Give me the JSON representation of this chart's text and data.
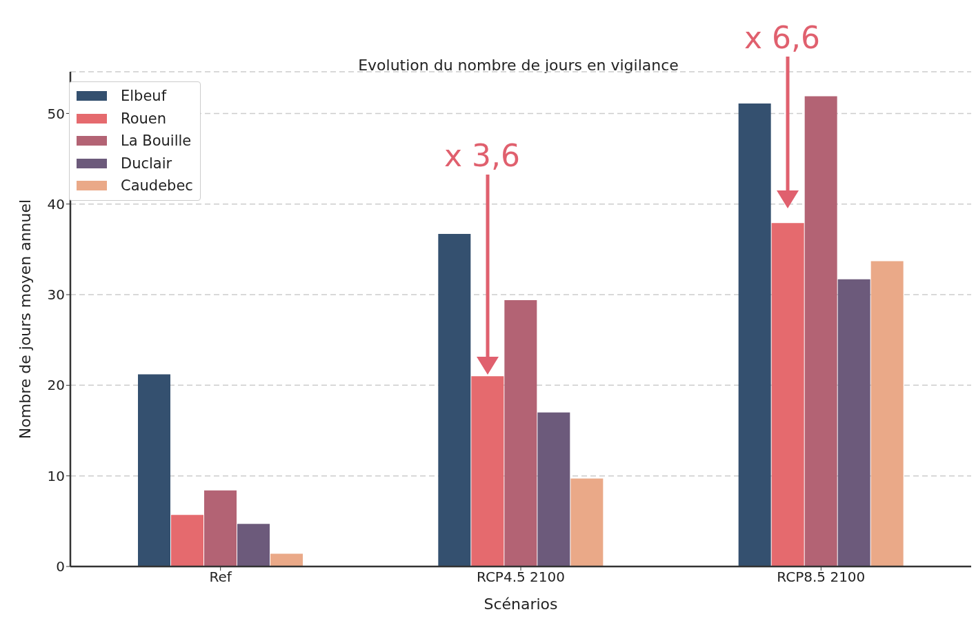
{
  "chart_data": {
    "type": "bar",
    "title": "Evolution du nombre de jours en vigilance",
    "xlabel": "Scénarios",
    "ylabel": "Nombre de jours moyen annuel",
    "categories": [
      "Ref",
      "RCP4.5 2100",
      "RCP8.5 2100"
    ],
    "series": [
      {
        "name": "Elbeuf",
        "color": "#34506f",
        "values": [
          21.2,
          36.7,
          51.1
        ]
      },
      {
        "name": "Rouen",
        "color": "#e56a6e",
        "values": [
          5.7,
          21.0,
          37.9
        ]
      },
      {
        "name": "La Bouille",
        "color": "#b36374",
        "values": [
          8.4,
          29.4,
          51.9
        ]
      },
      {
        "name": "Duclair",
        "color": "#6c5a7b",
        "values": [
          4.7,
          17.0,
          31.7
        ]
      },
      {
        "name": "Caudebec",
        "color": "#eaa988",
        "values": [
          1.4,
          9.7,
          33.7
        ]
      }
    ],
    "ylim": [
      0,
      54.6
    ],
    "yticks": [
      0,
      10,
      20,
      30,
      40,
      50
    ],
    "grid": "y",
    "legend": "top left",
    "annotations": [
      "x 3,6",
      "x 6,6"
    ]
  }
}
